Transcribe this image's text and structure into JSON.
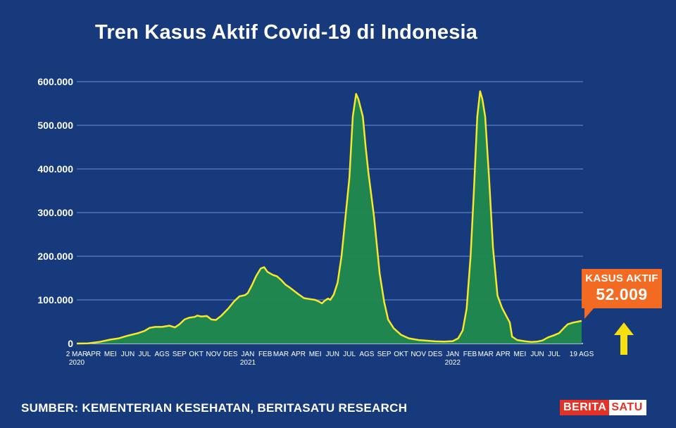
{
  "header": {
    "title": "Tren Kasus Aktif Covid-19 di Indonesia"
  },
  "footer": {
    "source": "SUMBER: KEMENTERIAN KESEHATAN, BERITASATU RESEARCH",
    "logo_part1": "BERITA",
    "logo_part2": "SATU"
  },
  "callout": {
    "label": "KASUS AKTIF",
    "value": "52.009"
  },
  "colors": {
    "background": "#163a7c",
    "area_fill": "#1f8a4c",
    "line": "#f7e82a",
    "grid": "#6f8fd6",
    "callout": "#f36b22",
    "arrow": "#f7e00f"
  },
  "chart_data": {
    "type": "area",
    "title": "Tren Kasus Aktif Covid-19 di Indonesia",
    "xlabel": "",
    "ylabel": "",
    "ylim": [
      0,
      600000
    ],
    "grid": "horizontal",
    "y_ticks": [
      0,
      100000,
      200000,
      300000,
      400000,
      500000,
      600000
    ],
    "y_tick_labels": [
      "0",
      "100.000",
      "200.000",
      "300.000",
      "400.000",
      "500.000",
      "600.000"
    ],
    "x_tick_labels": [
      {
        "label": "2 MAR",
        "sub": "2020",
        "day": 0
      },
      {
        "label": "APR",
        "day": 30
      },
      {
        "label": "MEI",
        "day": 60
      },
      {
        "label": "JUN",
        "day": 91
      },
      {
        "label": "JUL",
        "day": 121
      },
      {
        "label": "AGS",
        "day": 152
      },
      {
        "label": "SEP",
        "day": 183
      },
      {
        "label": "OKT",
        "day": 213
      },
      {
        "label": "NOV",
        "day": 244
      },
      {
        "label": "DES",
        "day": 274
      },
      {
        "label": "JAN",
        "sub": "2021",
        "day": 305
      },
      {
        "label": "FEB",
        "day": 336
      },
      {
        "label": "MAR",
        "day": 364
      },
      {
        "label": "APR",
        "day": 395
      },
      {
        "label": "MEI",
        "day": 425
      },
      {
        "label": "JUN",
        "day": 456
      },
      {
        "label": "JUL",
        "day": 486
      },
      {
        "label": "AGS",
        "day": 517
      },
      {
        "label": "SEP",
        "day": 548
      },
      {
        "label": "OKT",
        "day": 578
      },
      {
        "label": "NOV",
        "day": 609
      },
      {
        "label": "DES",
        "day": 639
      },
      {
        "label": "JAN",
        "sub": "2022",
        "day": 670
      },
      {
        "label": "FEB",
        "day": 701
      },
      {
        "label": "MAR",
        "day": 729
      },
      {
        "label": "APR",
        "day": 760
      },
      {
        "label": "MEI",
        "day": 790
      },
      {
        "label": "JUN",
        "day": 821
      },
      {
        "label": "JUL",
        "day": 851
      },
      {
        "label": "19 AGS",
        "day": 900
      }
    ],
    "series": [
      {
        "name": "Kasus Aktif",
        "points": [
          [
            0,
            0
          ],
          [
            20,
            500
          ],
          [
            40,
            3500
          ],
          [
            60,
            9000
          ],
          [
            75,
            12000
          ],
          [
            91,
            18000
          ],
          [
            110,
            24000
          ],
          [
            121,
            29000
          ],
          [
            130,
            36000
          ],
          [
            140,
            38000
          ],
          [
            152,
            38000
          ],
          [
            165,
            41000
          ],
          [
            175,
            37000
          ],
          [
            183,
            44000
          ],
          [
            192,
            55000
          ],
          [
            200,
            59000
          ],
          [
            210,
            61000
          ],
          [
            215,
            64000
          ],
          [
            222,
            62000
          ],
          [
            232,
            63000
          ],
          [
            240,
            55000
          ],
          [
            248,
            54000
          ],
          [
            258,
            64000
          ],
          [
            270,
            80000
          ],
          [
            280,
            96000
          ],
          [
            290,
            108000
          ],
          [
            300,
            111000
          ],
          [
            305,
            116000
          ],
          [
            312,
            133000
          ],
          [
            320,
            155000
          ],
          [
            328,
            172000
          ],
          [
            334,
            175000
          ],
          [
            340,
            164000
          ],
          [
            350,
            157000
          ],
          [
            357,
            154000
          ],
          [
            364,
            146000
          ],
          [
            372,
            135000
          ],
          [
            380,
            128000
          ],
          [
            395,
            113000
          ],
          [
            405,
            104000
          ],
          [
            415,
            102000
          ],
          [
            425,
            100000
          ],
          [
            432,
            96000
          ],
          [
            437,
            92000
          ],
          [
            442,
            98000
          ],
          [
            448,
            103000
          ],
          [
            452,
            100000
          ],
          [
            458,
            112000
          ],
          [
            465,
            140000
          ],
          [
            472,
            200000
          ],
          [
            479,
            290000
          ],
          [
            486,
            380000
          ],
          [
            492,
            520000
          ],
          [
            498,
            572000
          ],
          [
            502,
            560000
          ],
          [
            507,
            535000
          ],
          [
            510,
            520000
          ],
          [
            515,
            450000
          ],
          [
            520,
            390000
          ],
          [
            530,
            290000
          ],
          [
            540,
            160000
          ],
          [
            548,
            95000
          ],
          [
            555,
            55000
          ],
          [
            565,
            35000
          ],
          [
            578,
            20000
          ],
          [
            592,
            12000
          ],
          [
            609,
            8000
          ],
          [
            625,
            6500
          ],
          [
            639,
            5000
          ],
          [
            655,
            4500
          ],
          [
            670,
            5500
          ],
          [
            680,
            12000
          ],
          [
            688,
            30000
          ],
          [
            695,
            80000
          ],
          [
            702,
            200000
          ],
          [
            708,
            350000
          ],
          [
            714,
            520000
          ],
          [
            719,
            578000
          ],
          [
            723,
            560000
          ],
          [
            728,
            520000
          ],
          [
            735,
            380000
          ],
          [
            742,
            220000
          ],
          [
            750,
            110000
          ],
          [
            758,
            82000
          ],
          [
            765,
            65000
          ],
          [
            772,
            48000
          ],
          [
            776,
            16000
          ],
          [
            785,
            8000
          ],
          [
            800,
            5000
          ],
          [
            810,
            3500
          ],
          [
            821,
            4500
          ],
          [
            830,
            7000
          ],
          [
            840,
            14000
          ],
          [
            851,
            19000
          ],
          [
            860,
            24000
          ],
          [
            868,
            35000
          ],
          [
            875,
            44000
          ],
          [
            885,
            48000
          ],
          [
            893,
            50000
          ],
          [
            900,
            52009
          ]
        ]
      }
    ]
  }
}
